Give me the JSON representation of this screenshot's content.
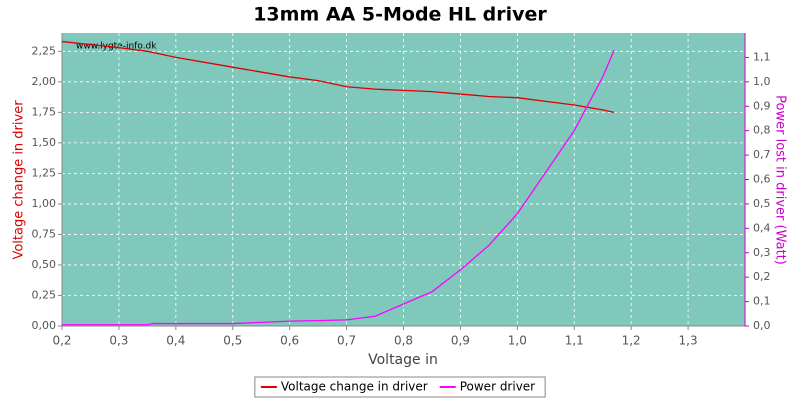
{
  "chart_data": {
    "type": "line",
    "title": "13mm AA 5-Mode HL driver",
    "watermark": "www.lygte-info.dk",
    "x_label": "Voltage in",
    "y_label": "Voltage change in driver",
    "y2_label": "Power lost in driver (Watt)",
    "x": [
      0.2,
      0.3,
      0.35,
      0.36,
      0.4,
      0.5,
      0.55,
      0.6,
      0.65,
      0.7,
      0.75,
      0.8,
      0.85,
      0.9,
      0.95,
      1.0,
      1.05,
      1.1,
      1.15,
      1.17
    ],
    "series": [
      {
        "name": "Voltage change in driver",
        "color": "#dd0000",
        "values": [
          2.33,
          2.28,
          2.25,
          2.24,
          2.2,
          2.12,
          2.08,
          2.04,
          2.01,
          1.96,
          1.94,
          1.93,
          1.92,
          1.9,
          1.88,
          1.87,
          1.84,
          1.81,
          1.77,
          1.75
        ]
      },
      {
        "name": "Power driver",
        "color": "#ff00ff",
        "axis": "y2",
        "values": [
          0.005,
          0.005,
          0.005,
          0.01,
          0.01,
          0.01,
          0.015,
          0.02,
          0.022,
          0.025,
          0.04,
          0.09,
          0.14,
          0.23,
          0.33,
          0.46,
          0.63,
          0.8,
          1.02,
          1.13
        ]
      }
    ],
    "xlim": [
      0.2,
      1.4
    ],
    "ylim": [
      0,
      2.4
    ],
    "y2lim": [
      0,
      1.2
    ],
    "xticks": [
      {
        "value": 0.2,
        "label": "0,2"
      },
      {
        "value": 0.3,
        "label": "0,3"
      },
      {
        "value": 0.4,
        "label": "0,4"
      },
      {
        "value": 0.5,
        "label": "0,5"
      },
      {
        "value": 0.6,
        "label": "0,6"
      },
      {
        "value": 0.7,
        "label": "0,7"
      },
      {
        "value": 0.8,
        "label": "0,8"
      },
      {
        "value": 0.9,
        "label": "0,9"
      },
      {
        "value": 1.0,
        "label": "1,0"
      },
      {
        "value": 1.1,
        "label": "1,1"
      },
      {
        "value": 1.2,
        "label": "1,2"
      },
      {
        "value": 1.3,
        "label": "1,3"
      }
    ],
    "yticks": [
      {
        "value": 0,
        "label": "0,00"
      },
      {
        "value": 0.25,
        "label": "0,25"
      },
      {
        "value": 0.5,
        "label": "0,50"
      },
      {
        "value": 0.75,
        "label": "0,75"
      },
      {
        "value": 1.0,
        "label": "1,00"
      },
      {
        "value": 1.25,
        "label": "1,25"
      },
      {
        "value": 1.5,
        "label": "1,50"
      },
      {
        "value": 1.75,
        "label": "1,75"
      },
      {
        "value": 2.0,
        "label": "2,00"
      },
      {
        "value": 2.25,
        "label": "2,25"
      }
    ],
    "y2ticks": [
      {
        "value": 0,
        "label": "0,0"
      },
      {
        "value": 0.1,
        "label": "0,1"
      },
      {
        "value": 0.2,
        "label": "0,2"
      },
      {
        "value": 0.3,
        "label": "0,3"
      },
      {
        "value": 0.4,
        "label": "0,4"
      },
      {
        "value": 0.5,
        "label": "0,5"
      },
      {
        "value": 0.6,
        "label": "0,6"
      },
      {
        "value": 0.7,
        "label": "0,7"
      },
      {
        "value": 0.8,
        "label": "0,8"
      },
      {
        "value": 0.9,
        "label": "0,9"
      },
      {
        "value": 1.0,
        "label": "1,0"
      },
      {
        "value": 1.1,
        "label": "1,1"
      }
    ],
    "grid": true,
    "legend": "bottom"
  }
}
